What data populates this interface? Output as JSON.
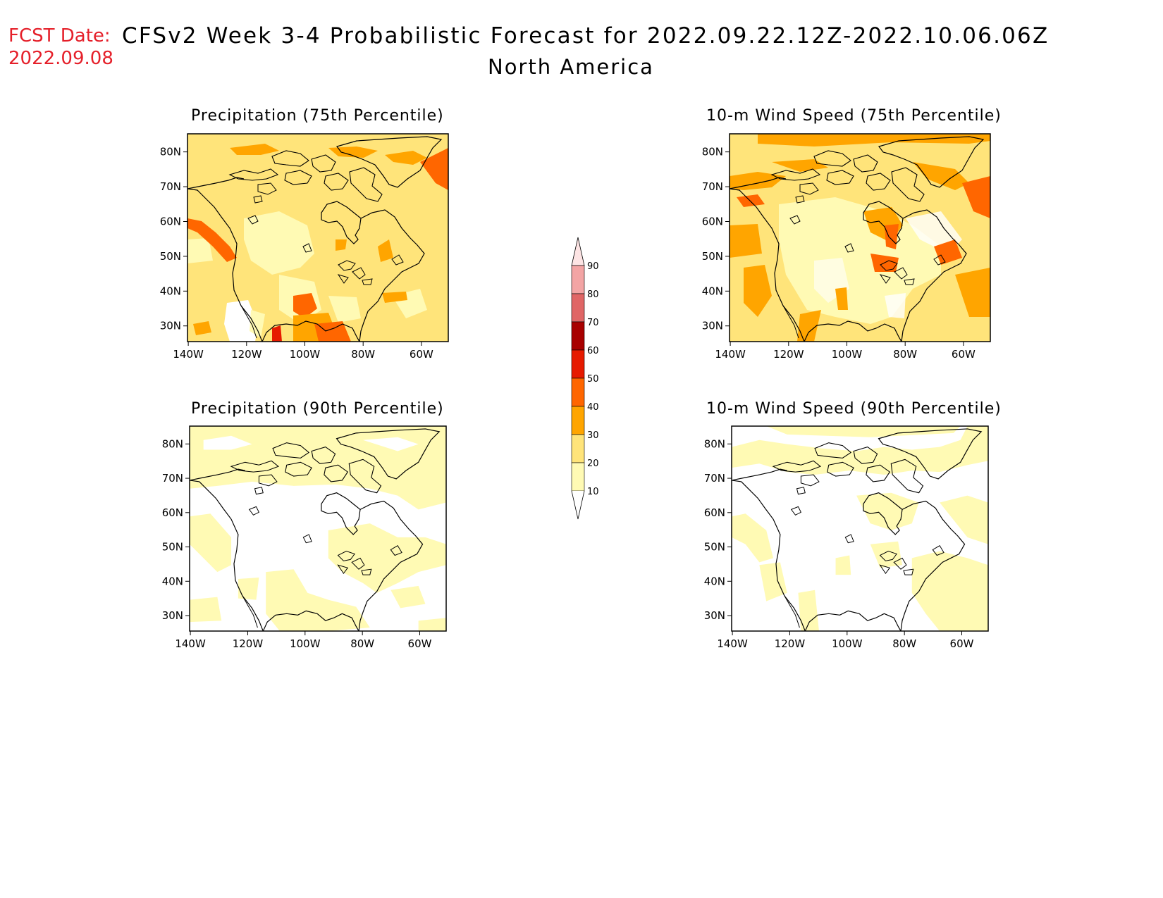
{
  "header": {
    "fcst_label": "FCST Date:",
    "fcst_date": "2022.09.08",
    "title": "CFSv2 Week 3-4 Probabilistic Forecast for 2022.09.22.12Z-2022.10.06.06Z",
    "subtitle": "North America"
  },
  "panels": [
    {
      "id": "precip75",
      "title": "Precipitation (75th Percentile)"
    },
    {
      "id": "wind75",
      "title": "10-m Wind Speed (75th Percentile)"
    },
    {
      "id": "precip90",
      "title": "Precipitation (90th Percentile)"
    },
    {
      "id": "wind90",
      "title": "10-m Wind Speed (90th Percentile)"
    }
  ],
  "axes": {
    "lat_labels": [
      "80N",
      "70N",
      "60N",
      "50N",
      "40N",
      "30N"
    ],
    "lon_labels": [
      "140W",
      "120W",
      "100W",
      "80W",
      "60W"
    ]
  },
  "colorbar": {
    "levels": [
      "90",
      "80",
      "70",
      "60",
      "50",
      "40",
      "30",
      "20",
      "10"
    ],
    "colors": [
      "#fde4e4",
      "#f3a4a4",
      "#e06666",
      "#a80000",
      "#e61a00",
      "#ff6600",
      "#ffa500",
      "#ffe47a",
      "#fffab4"
    ]
  },
  "colors": {
    "level_10_20": "#fffab4",
    "level_20_30": "#ffe47a",
    "level_30_40": "#ffa500",
    "level_40_50": "#ff6600",
    "level_50_60": "#e61a00",
    "header_red": "#e5202a"
  }
}
